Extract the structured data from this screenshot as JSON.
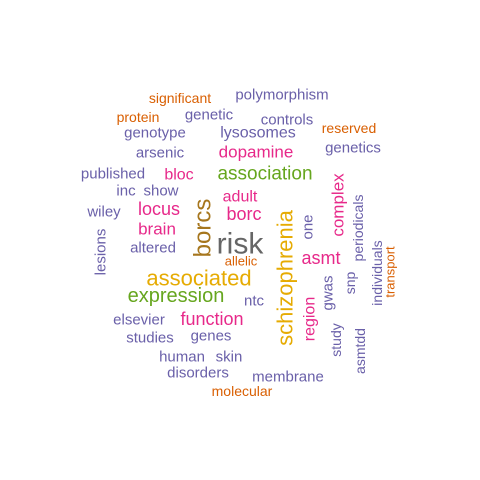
{
  "colors": {
    "purple": "#6a60a9",
    "orange": "#d95f02",
    "magenta": "#e7298a",
    "green": "#66a61e",
    "gold": "#e6ab02",
    "brown": "#a6761d",
    "gray": "#666666",
    "background": "#ffffff"
  },
  "words": [
    {
      "text": "risk",
      "color": "gray"
    },
    {
      "text": "schizophrenia",
      "color": "gold"
    },
    {
      "text": "borcs",
      "color": "brown"
    },
    {
      "text": "associated",
      "color": "gold"
    },
    {
      "text": "association",
      "color": "green"
    },
    {
      "text": "expression",
      "color": "green"
    },
    {
      "text": "function",
      "color": "magenta"
    },
    {
      "text": "dopamine",
      "color": "magenta"
    },
    {
      "text": "locus",
      "color": "magenta"
    },
    {
      "text": "borc",
      "color": "magenta"
    },
    {
      "text": "asmt",
      "color": "magenta"
    },
    {
      "text": "complex",
      "color": "magenta"
    },
    {
      "text": "adult",
      "color": "magenta"
    },
    {
      "text": "brain",
      "color": "magenta"
    },
    {
      "text": "region",
      "color": "magenta"
    },
    {
      "text": "bloc",
      "color": "magenta"
    },
    {
      "text": "lysosomes",
      "color": "purple"
    },
    {
      "text": "polymorphism",
      "color": "purple"
    },
    {
      "text": "genetic",
      "color": "purple"
    },
    {
      "text": "controls",
      "color": "purple"
    },
    {
      "text": "genotype",
      "color": "purple"
    },
    {
      "text": "arsenic",
      "color": "purple"
    },
    {
      "text": "genetics",
      "color": "purple"
    },
    {
      "text": "published",
      "color": "purple"
    },
    {
      "text": "inc",
      "color": "purple"
    },
    {
      "text": "show",
      "color": "purple"
    },
    {
      "text": "wiley",
      "color": "purple"
    },
    {
      "text": "altered",
      "color": "purple"
    },
    {
      "text": "lesions",
      "color": "purple"
    },
    {
      "text": "one",
      "color": "purple"
    },
    {
      "text": "ntc",
      "color": "purple"
    },
    {
      "text": "gwas",
      "color": "purple"
    },
    {
      "text": "snp",
      "color": "purple"
    },
    {
      "text": "periodicals",
      "color": "purple"
    },
    {
      "text": "individuals",
      "color": "purple"
    },
    {
      "text": "elsevier",
      "color": "purple"
    },
    {
      "text": "studies",
      "color": "purple"
    },
    {
      "text": "genes",
      "color": "purple"
    },
    {
      "text": "study",
      "color": "purple"
    },
    {
      "text": "human",
      "color": "purple"
    },
    {
      "text": "skin",
      "color": "purple"
    },
    {
      "text": "disorders",
      "color": "purple"
    },
    {
      "text": "membrane",
      "color": "purple"
    },
    {
      "text": "asmtdd",
      "color": "purple"
    },
    {
      "text": "significant",
      "color": "orange"
    },
    {
      "text": "protein",
      "color": "orange"
    },
    {
      "text": "reserved",
      "color": "orange"
    },
    {
      "text": "allelic",
      "color": "orange"
    },
    {
      "text": "transport",
      "color": "orange"
    },
    {
      "text": "molecular",
      "color": "orange"
    }
  ]
}
